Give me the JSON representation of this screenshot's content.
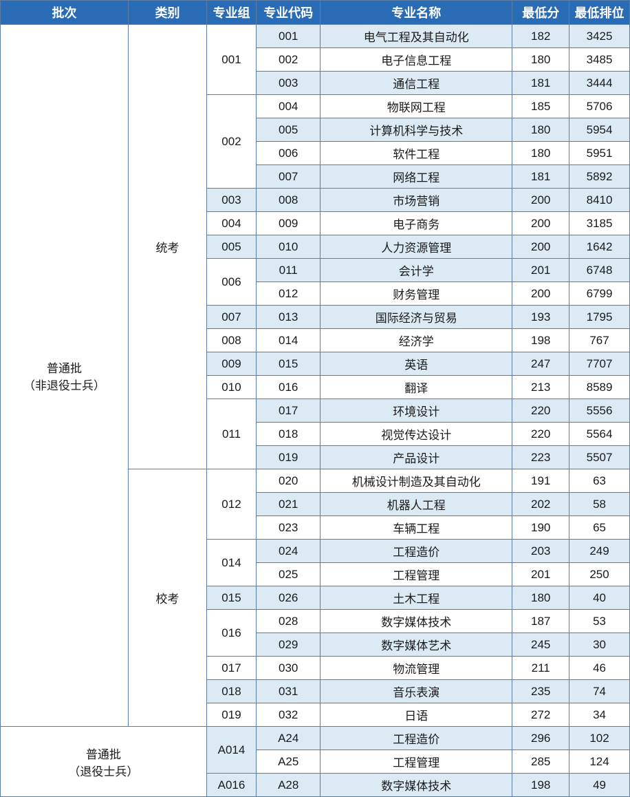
{
  "colors": {
    "header_bg": "#2a6bb5",
    "header_text": "#ffffff",
    "border": "#5b7da3",
    "row_shade": "#dceaf4",
    "row_white": "#ffffff",
    "cell_text": "#1a1a1a"
  },
  "headers": {
    "batch": "批次",
    "category": "类别",
    "group": "专业组",
    "code": "专业代码",
    "name": "专业名称",
    "score": "最低分",
    "rank": "最低排位"
  },
  "batches": {
    "normal": "普通批\n（非退役士兵）",
    "veteran": "普通批\n（退役士兵）"
  },
  "categories": {
    "tongkao": "统考",
    "xiaokao": "校考"
  },
  "groups": {
    "g001": "001",
    "g002": "002",
    "g003": "003",
    "g004": "004",
    "g005": "005",
    "g006": "006",
    "g007": "007",
    "g008": "008",
    "g009": "009",
    "g010": "010",
    "g011": "011",
    "g012": "012",
    "g014": "014",
    "g015": "015",
    "g016": "016",
    "g017": "017",
    "g018": "018",
    "g019": "019",
    "gA014": "A014",
    "gA016": "A016"
  },
  "rows": [
    {
      "code": "001",
      "name": "电气工程及其自动化",
      "score": "182",
      "rank": "3425",
      "shade": true
    },
    {
      "code": "002",
      "name": "电子信息工程",
      "score": "180",
      "rank": "3485",
      "shade": false
    },
    {
      "code": "003",
      "name": "通信工程",
      "score": "181",
      "rank": "3444",
      "shade": true
    },
    {
      "code": "004",
      "name": "物联网工程",
      "score": "185",
      "rank": "5706",
      "shade": false
    },
    {
      "code": "005",
      "name": "计算机科学与技术",
      "score": "180",
      "rank": "5954",
      "shade": true
    },
    {
      "code": "006",
      "name": "软件工程",
      "score": "180",
      "rank": "5951",
      "shade": false
    },
    {
      "code": "007",
      "name": "网络工程",
      "score": "181",
      "rank": "5892",
      "shade": true
    },
    {
      "code": "008",
      "name": "市场营销",
      "score": "200",
      "rank": "8410",
      "shade": true
    },
    {
      "code": "009",
      "name": "电子商务",
      "score": "200",
      "rank": "3185",
      "shade": false
    },
    {
      "code": "010",
      "name": "人力资源管理",
      "score": "200",
      "rank": "1642",
      "shade": true
    },
    {
      "code": "011",
      "name": "会计学",
      "score": "201",
      "rank": "6748",
      "shade": true
    },
    {
      "code": "012",
      "name": "财务管理",
      "score": "200",
      "rank": "6799",
      "shade": false
    },
    {
      "code": "013",
      "name": "国际经济与贸易",
      "score": "193",
      "rank": "1795",
      "shade": true
    },
    {
      "code": "014",
      "name": "经济学",
      "score": "198",
      "rank": "767",
      "shade": false
    },
    {
      "code": "015",
      "name": "英语",
      "score": "247",
      "rank": "7707",
      "shade": true
    },
    {
      "code": "016",
      "name": "翻译",
      "score": "213",
      "rank": "8589",
      "shade": false
    },
    {
      "code": "017",
      "name": "环境设计",
      "score": "220",
      "rank": "5556",
      "shade": true
    },
    {
      "code": "018",
      "name": "视觉传达设计",
      "score": "220",
      "rank": "5564",
      "shade": false
    },
    {
      "code": "019",
      "name": "产品设计",
      "score": "223",
      "rank": "5507",
      "shade": true
    },
    {
      "code": "020",
      "name": "机械设计制造及其自动化",
      "score": "191",
      "rank": "63",
      "shade": false
    },
    {
      "code": "021",
      "name": "机器人工程",
      "score": "202",
      "rank": "58",
      "shade": true
    },
    {
      "code": "023",
      "name": "车辆工程",
      "score": "190",
      "rank": "65",
      "shade": false
    },
    {
      "code": "024",
      "name": "工程造价",
      "score": "203",
      "rank": "249",
      "shade": true
    },
    {
      "code": "025",
      "name": "工程管理",
      "score": "201",
      "rank": "250",
      "shade": false
    },
    {
      "code": "026",
      "name": "土木工程",
      "score": "180",
      "rank": "40",
      "shade": true
    },
    {
      "code": "028",
      "name": "数字媒体技术",
      "score": "187",
      "rank": "53",
      "shade": false
    },
    {
      "code": "029",
      "name": "数字媒体艺术",
      "score": "245",
      "rank": "30",
      "shade": true
    },
    {
      "code": "030",
      "name": "物流管理",
      "score": "211",
      "rank": "46",
      "shade": false
    },
    {
      "code": "031",
      "name": "音乐表演",
      "score": "235",
      "rank": "74",
      "shade": true
    },
    {
      "code": "032",
      "name": "日语",
      "score": "272",
      "rank": "34",
      "shade": false
    },
    {
      "code": "A24",
      "name": "工程造价",
      "score": "296",
      "rank": "102",
      "shade": true
    },
    {
      "code": "A25",
      "name": "工程管理",
      "score": "285",
      "rank": "124",
      "shade": false
    },
    {
      "code": "A28",
      "name": "数字媒体技术",
      "score": "198",
      "rank": "49",
      "shade": true
    }
  ]
}
